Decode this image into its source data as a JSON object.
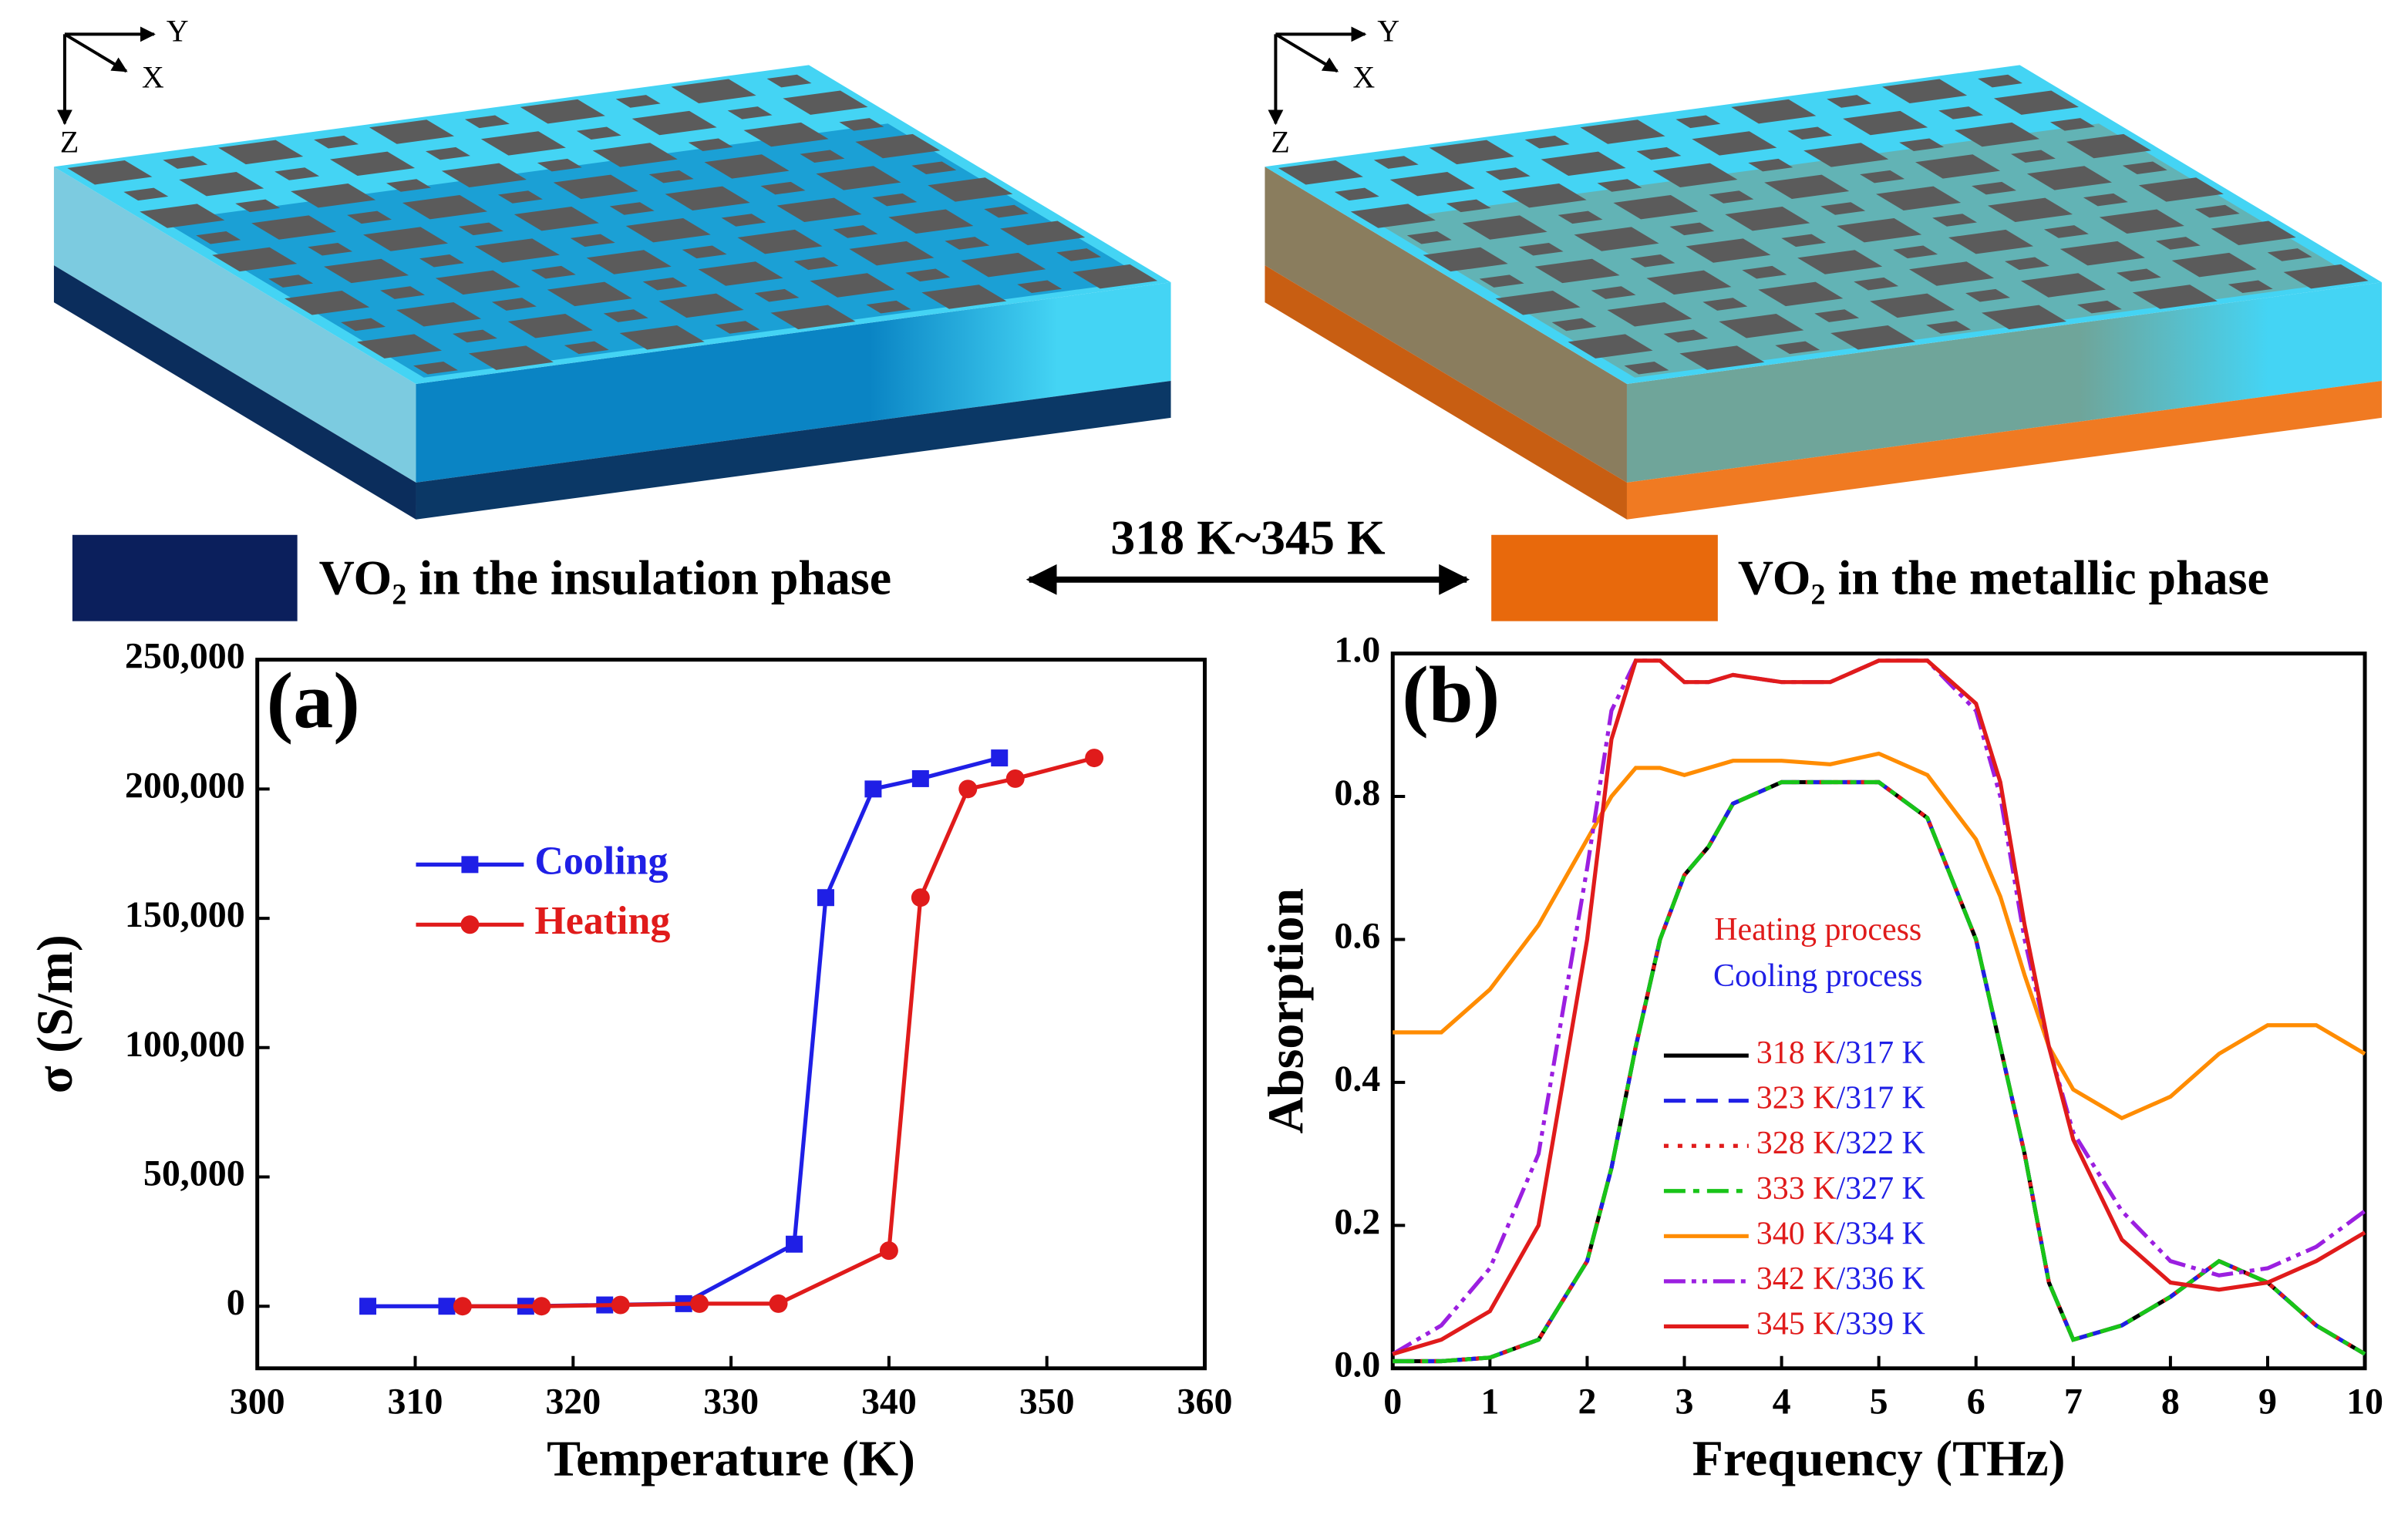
{
  "illustrations": [
    {
      "axes": [
        "Y",
        "X",
        "Z"
      ]
    },
    {
      "axes": [
        "Y",
        "X",
        "Z"
      ]
    }
  ],
  "phase_legend": {
    "insulating": "VO₂ in the insulation phase",
    "transition": "318 K~345 K",
    "metallic": "VO₂ in the metallic phase"
  },
  "chart_data": [
    {
      "type": "line",
      "panel_label": "(a)",
      "xlabel": "Temperature (K)",
      "ylabel": "σ (S/m)",
      "xlim": [
        300,
        360
      ],
      "xticks": [
        300,
        310,
        320,
        330,
        340,
        350,
        360
      ],
      "ylim": [
        -24000,
        250000
      ],
      "yticks": [
        0,
        {
          "value": 50000,
          "label": "50,000"
        },
        {
          "value": 100000,
          "label": "100,000"
        },
        {
          "value": 150000,
          "label": "150,000"
        },
        {
          "value": 200000,
          "label": "200,000"
        },
        {
          "value": 250000,
          "label": "250,000"
        }
      ],
      "series": [
        {
          "name": "Cooling",
          "color": "#1f1fe6",
          "marker": "square",
          "dash": "solid",
          "x": [
            307,
            312,
            317,
            322,
            327,
            334,
            336,
            339,
            342,
            347
          ],
          "values": [
            0,
            0,
            0,
            500,
            1000,
            24000,
            158000,
            200000,
            204000,
            212000
          ]
        },
        {
          "name": "Heating",
          "color": "#e01b1b",
          "marker": "circle",
          "dash": "solid",
          "x": [
            313,
            318,
            323,
            328,
            333,
            340,
            342,
            345,
            348,
            353
          ],
          "values": [
            0,
            0,
            500,
            1000,
            1000,
            21500,
            158000,
            200000,
            204000,
            212000
          ]
        }
      ]
    },
    {
      "type": "line",
      "panel_label": "(b)",
      "xlabel": "Frequency (THz)",
      "ylabel": "Absorption",
      "annotations": [
        {
          "text": "Heating process",
          "color": "#e01b1b"
        },
        {
          "text": "Cooling process",
          "color": "#1f1fe6"
        }
      ],
      "xlim": [
        0,
        10
      ],
      "xticks": [
        0,
        1,
        2,
        3,
        4,
        5,
        6,
        7,
        8,
        9,
        10
      ],
      "ylim": [
        0,
        1
      ],
      "yticks": [
        {
          "value": 0,
          "label": "0.0"
        },
        0.2,
        0.4,
        0.6,
        0.8,
        {
          "value": 1,
          "label": "1.0"
        }
      ],
      "x": [
        0,
        0.5,
        1,
        1.5,
        2,
        2.25,
        2.5,
        2.75,
        3,
        3.25,
        3.5,
        4,
        4.5,
        5,
        5.5,
        6,
        6.25,
        6.5,
        6.75,
        7,
        7.5,
        8,
        8.5,
        9,
        9.5,
        10
      ],
      "legend_colors": [
        "#e01b1b",
        "#1f1fe6"
      ],
      "series": [
        {
          "name": "318 K/317 K",
          "color": "#000000",
          "dash": "solid",
          "values": [
            0.01,
            0.01,
            0.015,
            0.04,
            0.15,
            0.28,
            0.45,
            0.6,
            0.69,
            0.73,
            0.79,
            0.82,
            0.82,
            0.82,
            0.77,
            0.6,
            0.45,
            0.3,
            0.12,
            0.04,
            0.06,
            0.1,
            0.15,
            0.12,
            0.06,
            0.02
          ]
        },
        {
          "name": "323 K/317 K",
          "color": "#1f1fe6",
          "dash": "dashed",
          "values": [
            0.01,
            0.01,
            0.015,
            0.04,
            0.15,
            0.28,
            0.45,
            0.6,
            0.69,
            0.73,
            0.79,
            0.82,
            0.82,
            0.82,
            0.77,
            0.6,
            0.45,
            0.3,
            0.12,
            0.04,
            0.06,
            0.1,
            0.15,
            0.12,
            0.06,
            0.02
          ]
        },
        {
          "name": "328 K/322 K",
          "color": "#e01b1b",
          "dash": "dotted",
          "values": [
            0.01,
            0.01,
            0.015,
            0.04,
            0.15,
            0.28,
            0.45,
            0.6,
            0.69,
            0.73,
            0.79,
            0.82,
            0.82,
            0.82,
            0.77,
            0.6,
            0.45,
            0.3,
            0.12,
            0.04,
            0.06,
            0.1,
            0.15,
            0.12,
            0.06,
            0.02
          ]
        },
        {
          "name": "333 K/327 K",
          "color": "#18c418",
          "dash": "dashdot",
          "values": [
            0.01,
            0.01,
            0.015,
            0.04,
            0.15,
            0.28,
            0.45,
            0.6,
            0.69,
            0.73,
            0.79,
            0.82,
            0.82,
            0.82,
            0.77,
            0.6,
            0.45,
            0.3,
            0.12,
            0.04,
            0.06,
            0.1,
            0.15,
            0.12,
            0.06,
            0.02
          ]
        },
        {
          "name": "340 K/334 K",
          "color": "#ff8c00",
          "dash": "solid",
          "values": [
            0.47,
            0.47,
            0.53,
            0.62,
            0.74,
            0.8,
            0.84,
            0.84,
            0.83,
            0.84,
            0.85,
            0.85,
            0.845,
            0.86,
            0.83,
            0.74,
            0.66,
            0.55,
            0.45,
            0.39,
            0.35,
            0.38,
            0.44,
            0.48,
            0.48,
            0.44
          ]
        },
        {
          "name": "342 K/336 K",
          "color": "#9b1fe0",
          "dash": "dashdotdot",
          "values": [
            0.02,
            0.06,
            0.14,
            0.3,
            0.7,
            0.92,
            0.99,
            0.99,
            0.96,
            0.96,
            0.97,
            0.96,
            0.96,
            0.99,
            0.99,
            0.92,
            0.8,
            0.6,
            0.45,
            0.33,
            0.22,
            0.15,
            0.13,
            0.14,
            0.17,
            0.22
          ]
        },
        {
          "name": "345 K/339 K",
          "color": "#e01b1b",
          "dash": "solid",
          "values": [
            0.02,
            0.04,
            0.08,
            0.2,
            0.6,
            0.88,
            0.99,
            0.99,
            0.96,
            0.96,
            0.97,
            0.96,
            0.96,
            0.99,
            0.99,
            0.93,
            0.82,
            0.62,
            0.45,
            0.32,
            0.18,
            0.12,
            0.11,
            0.12,
            0.15,
            0.19
          ]
        }
      ]
    }
  ]
}
